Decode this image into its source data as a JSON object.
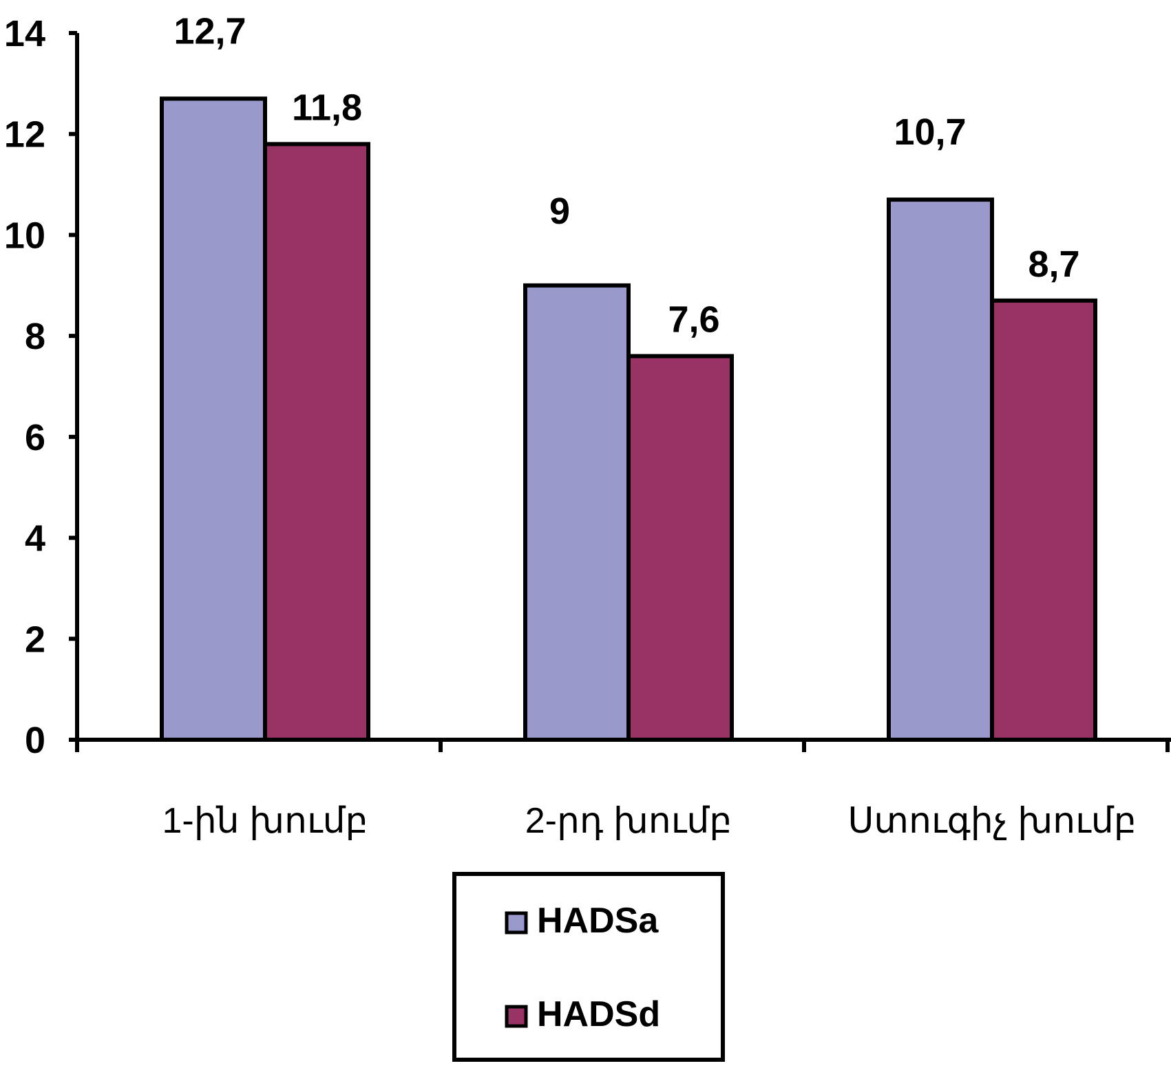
{
  "chart_data": {
    "type": "bar",
    "categories": [
      "1-ին խումբ",
      "2-րդ խումբ",
      "Ստուգիչ խումբ"
    ],
    "series": [
      {
        "name": "HADSa",
        "values": [
          12.7,
          9,
          10.7
        ],
        "value_labels": [
          "12,7",
          "9",
          "10,7"
        ],
        "color": "#9999CC"
      },
      {
        "name": "HADSd",
        "values": [
          11.8,
          7.6,
          8.7
        ],
        "value_labels": [
          "11,8",
          "7,6",
          "8,7"
        ],
        "color": "#993366"
      }
    ],
    "y_ticks": [
      "0",
      "2",
      "4",
      "6",
      "8",
      "10",
      "12",
      "14"
    ],
    "ylim": [
      0,
      14
    ],
    "title": "",
    "xlabel": "",
    "ylabel": "",
    "grid": false,
    "legend_position": "bottom-center"
  }
}
